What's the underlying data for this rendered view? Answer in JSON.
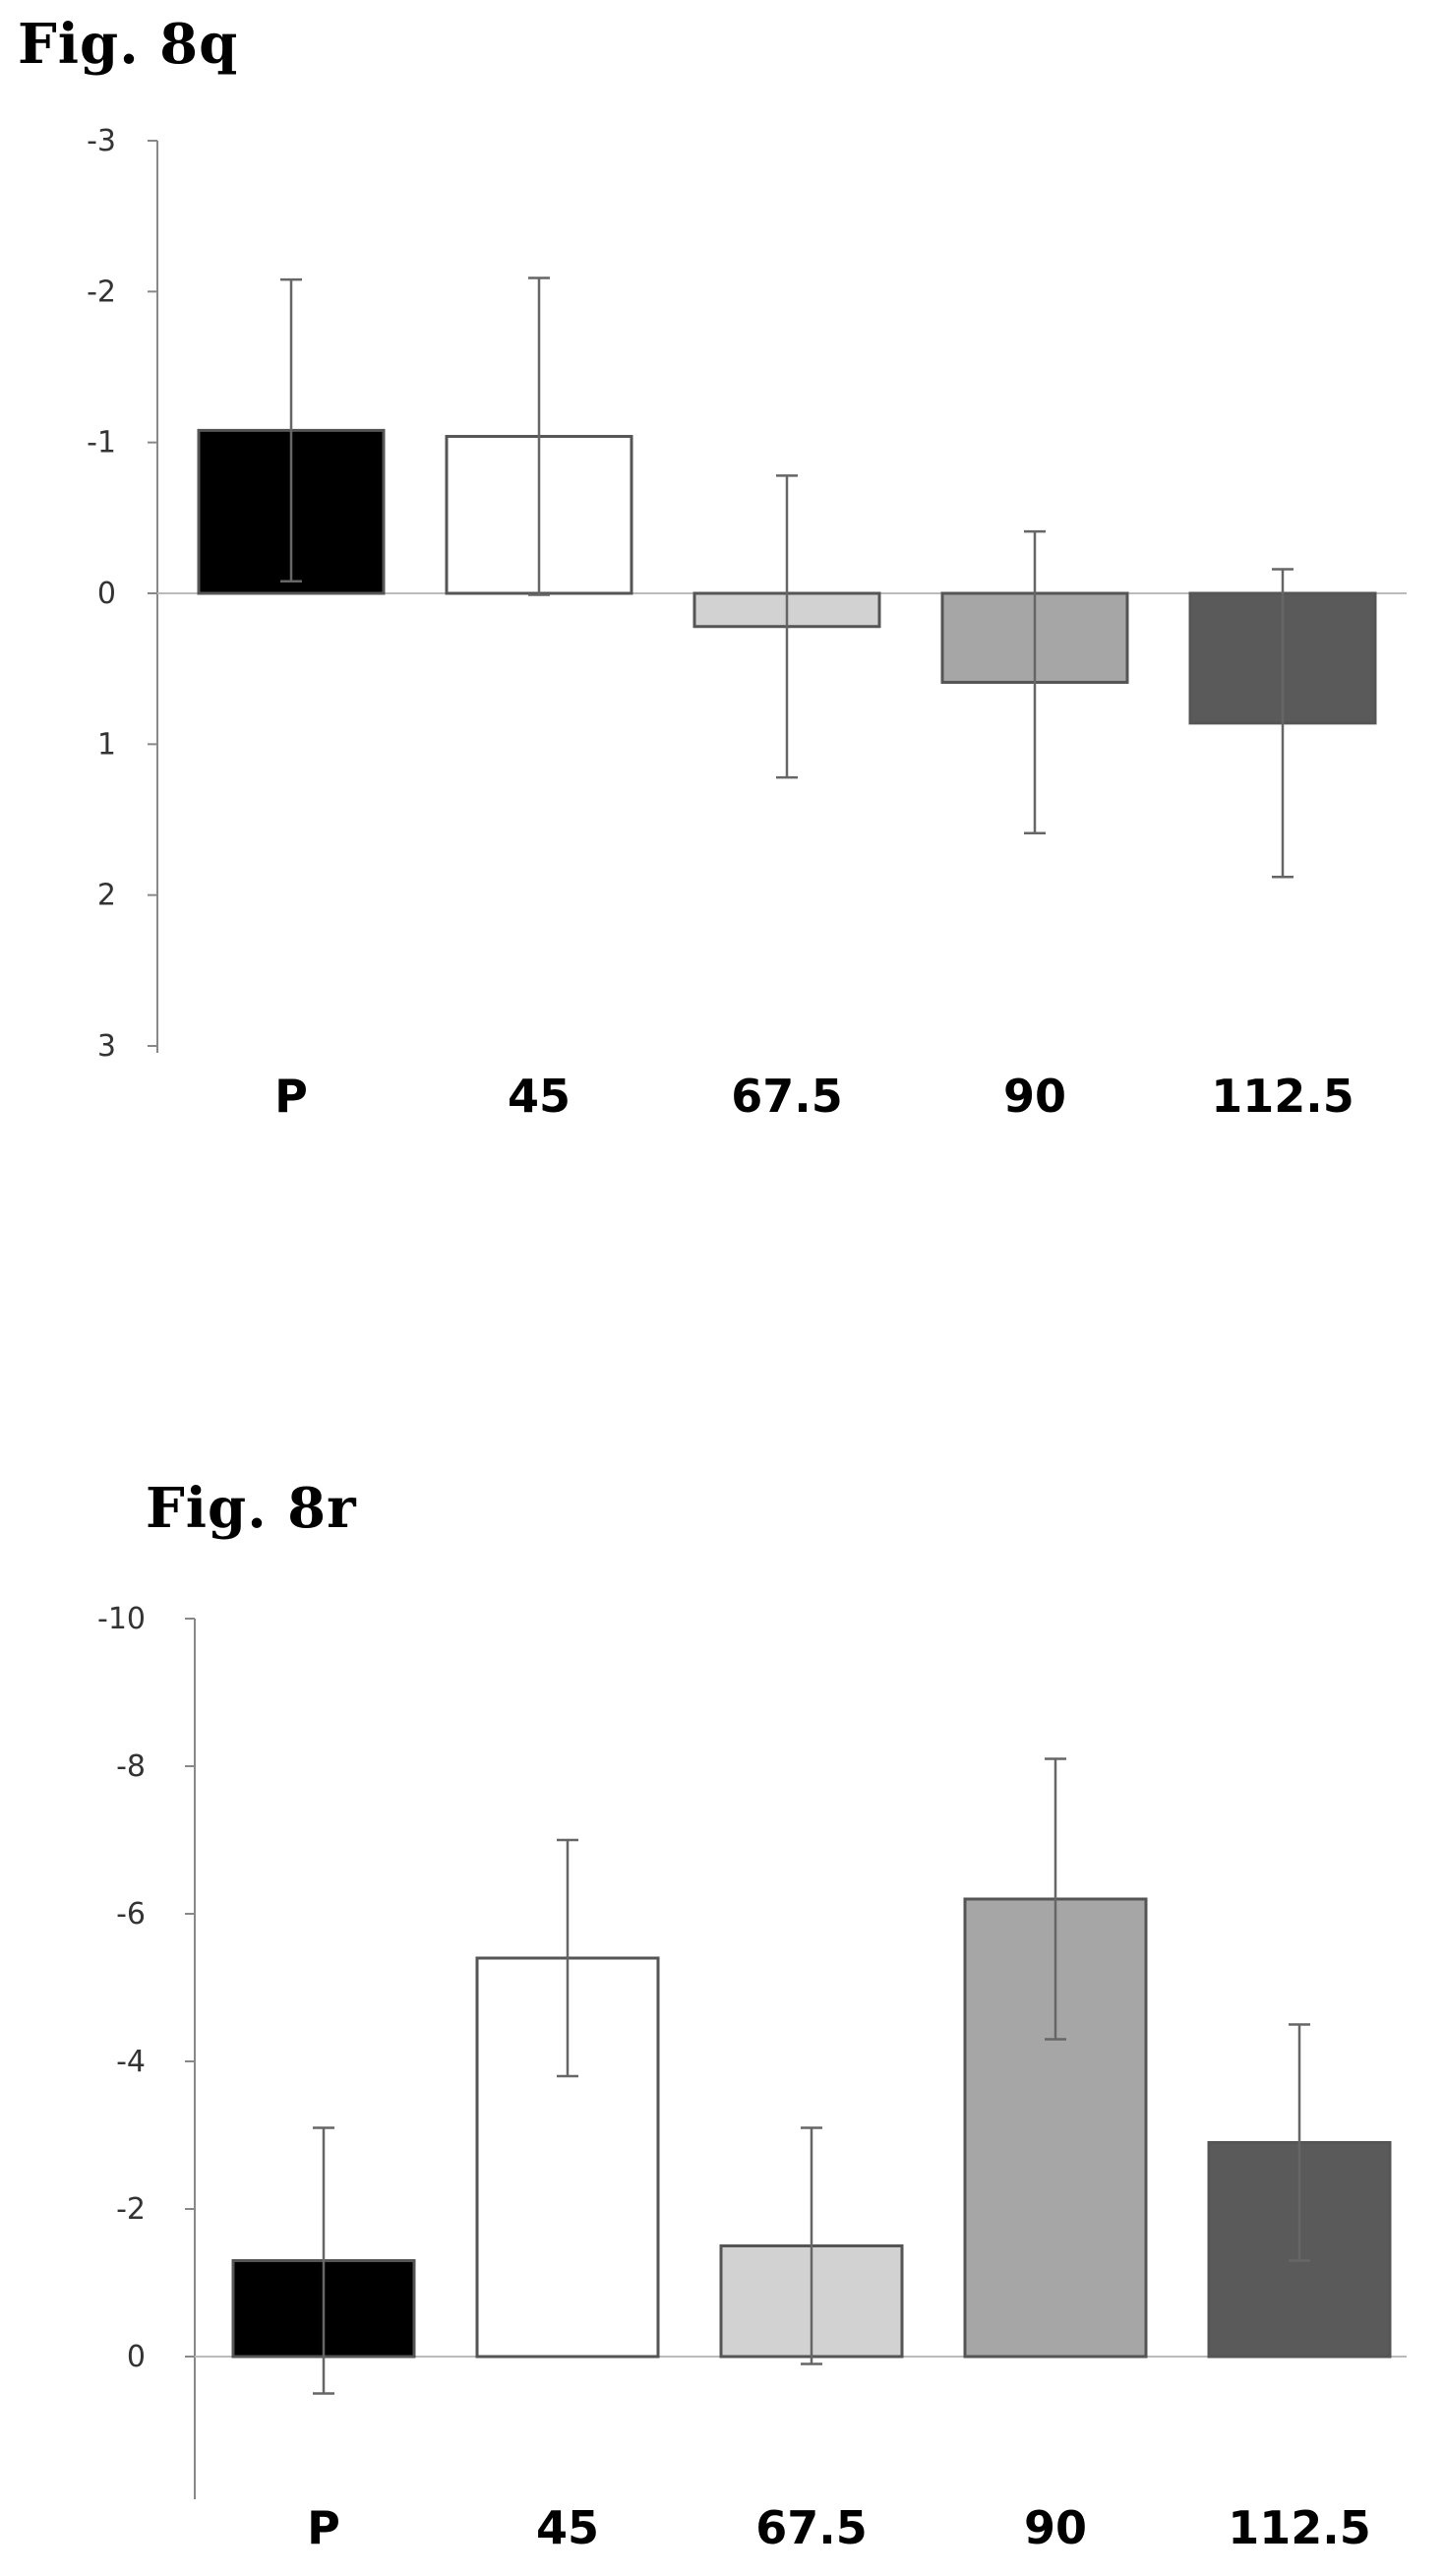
{
  "figures": [
    {
      "title": "Fig. 8q"
    },
    {
      "title": "Fig. 8r"
    }
  ],
  "chart_data": [
    {
      "type": "bar",
      "title": "Fig. 8q",
      "categories": [
        "P",
        "45",
        "67.5",
        "90",
        "112.5"
      ],
      "values": [
        -1.08,
        -1.04,
        0.22,
        0.59,
        0.86
      ],
      "error": [
        1.0,
        1.05,
        1.0,
        1.0,
        1.02
      ],
      "bar_colors": [
        "#000000",
        "#ffffff",
        "#d2d2d2",
        "#a6a6a6",
        "#5a5a5a"
      ],
      "yticks": [
        "-3",
        "-2",
        "-1",
        "0",
        "1",
        "2",
        "3"
      ],
      "ylim": [
        -3,
        3
      ],
      "y_axis": "inverted (negative values at top)",
      "xlabel": "",
      "ylabel": ""
    },
    {
      "type": "bar",
      "title": "Fig. 8r",
      "categories": [
        "P",
        "45",
        "67.5",
        "90",
        "112.5"
      ],
      "values": [
        -1.3,
        -5.4,
        -1.5,
        -6.2,
        -2.9
      ],
      "error": [
        1.8,
        1.6,
        1.6,
        1.9,
        1.6
      ],
      "bar_colors": [
        "#000000",
        "#ffffff",
        "#d2d2d2",
        "#a6a6a6",
        "#5a5a5a"
      ],
      "yticks": [
        "-10",
        "-8",
        "-6",
        "-4",
        "-2",
        "0"
      ],
      "ylim": [
        -10,
        0
      ],
      "y_axis": "inverted (negative values at top)",
      "xlabel": "",
      "ylabel": ""
    }
  ]
}
